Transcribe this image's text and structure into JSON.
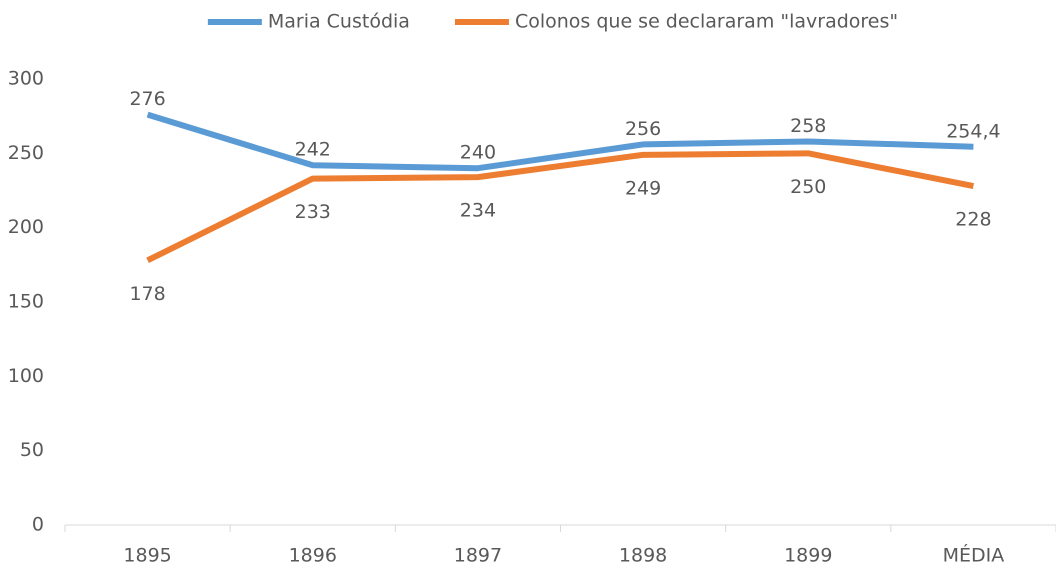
{
  "chart_data": {
    "type": "line",
    "categories": [
      "1895",
      "1896",
      "1897",
      "1898",
      "1899",
      "MÉDIA"
    ],
    "series": [
      {
        "name": "Maria Custódia",
        "color": "#5b9bd5",
        "values": [
          276,
          242,
          240,
          256,
          258,
          254.4
        ],
        "value_labels": [
          "276",
          "242",
          "240",
          "256",
          "258",
          "254,4"
        ]
      },
      {
        "name": "Colonos que se declararam \"lavradores\"",
        "color": "#ed7d31",
        "values": [
          178,
          233,
          234,
          249,
          250,
          228
        ]
      }
    ],
    "ylim": [
      0,
      300
    ],
    "yticks": [
      0,
      50,
      100,
      150,
      200,
      250,
      300
    ],
    "grid": false,
    "legend": "top"
  }
}
